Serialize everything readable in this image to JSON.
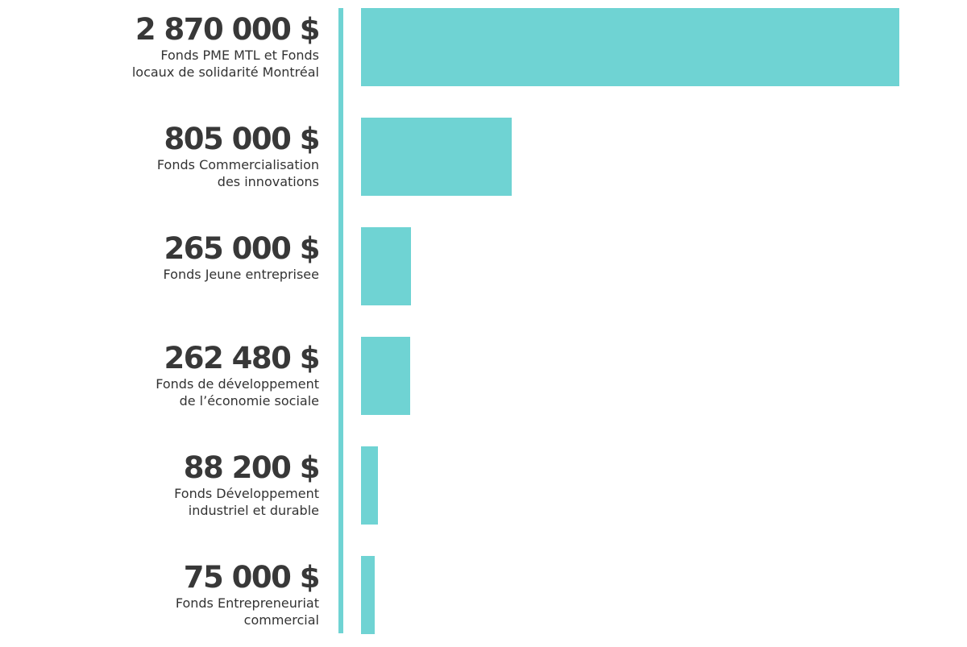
{
  "chart_data": {
    "type": "bar",
    "orientation": "horizontal",
    "color": "#6fd3d3",
    "categories": [
      "Fonds PME MTL et Fonds\nlocaux de solidarité Montréal",
      "Fonds Commercialisation\ndes innovations",
      "Fonds Jeune entreprisee",
      "Fonds de développement\nde l’économie sociale",
      "Fonds Développement\nindustriel et durable",
      "Fonds Entrepreneuriat\ncommercial"
    ],
    "values": [
      2870000,
      805000,
      265000,
      262480,
      88200,
      75000
    ],
    "value_labels": [
      "2 870 000 $",
      "805 000 $",
      "265 000 $",
      "262 480 $",
      "88 200 $",
      "75 000 $"
    ]
  }
}
